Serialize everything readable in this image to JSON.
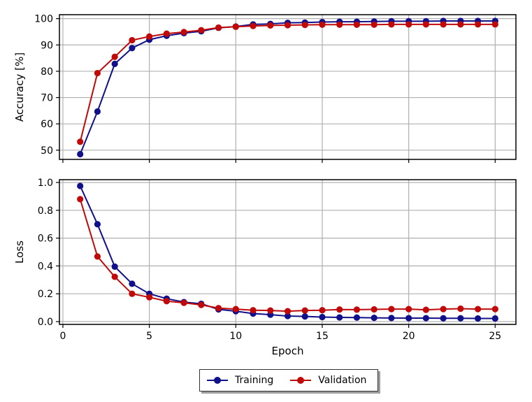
{
  "colors": {
    "training": "#10108a",
    "validation": "#c00a0a",
    "grid": "#b0b0b0"
  },
  "chart_data": [
    {
      "type": "line",
      "title": "",
      "xlabel": "",
      "ylabel": "Accuracy [%]",
      "xlim": [
        -0.2,
        26.2
      ],
      "ylim": [
        46.5,
        101.5
      ],
      "xticks": [
        0,
        5,
        10,
        15,
        20,
        25
      ],
      "yticks": [
        50,
        60,
        70,
        80,
        90,
        100
      ],
      "ytick_labels": [
        "50",
        "60",
        "70",
        "80",
        "90",
        "100"
      ],
      "grid": true,
      "x": [
        1,
        2,
        3,
        4,
        5,
        6,
        7,
        8,
        9,
        10,
        11,
        12,
        13,
        14,
        15,
        16,
        17,
        18,
        19,
        20,
        21,
        22,
        23,
        24,
        25
      ],
      "series": [
        {
          "name": "Training",
          "color": "#10108a",
          "values": [
            48.5,
            64.7,
            82.8,
            88.8,
            92.0,
            93.5,
            94.5,
            95.2,
            96.5,
            97.0,
            97.8,
            98.0,
            98.4,
            98.5,
            98.7,
            98.8,
            98.8,
            98.9,
            99.0,
            99.0,
            99.0,
            99.1,
            99.1,
            99.1,
            99.1
          ]
        },
        {
          "name": "Validation",
          "color": "#c00a0a",
          "values": [
            53.2,
            79.3,
            85.5,
            91.8,
            93.2,
            94.3,
            94.9,
            95.6,
            96.6,
            96.9,
            97.2,
            97.4,
            97.5,
            97.6,
            97.7,
            97.7,
            97.7,
            97.7,
            97.8,
            97.8,
            97.8,
            97.8,
            97.8,
            97.8,
            97.8
          ]
        }
      ]
    },
    {
      "type": "line",
      "title": "",
      "xlabel": "Epoch",
      "ylabel": "Loss",
      "xlim": [
        -0.2,
        26.2
      ],
      "ylim": [
        -0.02,
        1.02
      ],
      "xticks": [
        0,
        5,
        10,
        15,
        20,
        25
      ],
      "xtick_labels": [
        "0",
        "5",
        "10",
        "15",
        "20",
        "25"
      ],
      "yticks": [
        0.0,
        0.2,
        0.4,
        0.6,
        0.8,
        1.0
      ],
      "ytick_labels": [
        "0.0",
        "0.2",
        "0.4",
        "0.6",
        "0.8",
        "1.0"
      ],
      "grid": true,
      "x": [
        1,
        2,
        3,
        4,
        5,
        6,
        7,
        8,
        9,
        10,
        11,
        12,
        13,
        14,
        15,
        16,
        17,
        18,
        19,
        20,
        21,
        22,
        23,
        24,
        25
      ],
      "series": [
        {
          "name": "Training",
          "color": "#10108a",
          "values": [
            0.975,
            0.7,
            0.395,
            0.272,
            0.2,
            0.165,
            0.14,
            0.128,
            0.088,
            0.075,
            0.058,
            0.05,
            0.04,
            0.037,
            0.033,
            0.03,
            0.029,
            0.027,
            0.026,
            0.025,
            0.025,
            0.024,
            0.024,
            0.023,
            0.023
          ]
        },
        {
          "name": "Validation",
          "color": "#c00a0a",
          "values": [
            0.88,
            0.468,
            0.322,
            0.2,
            0.175,
            0.147,
            0.135,
            0.12,
            0.097,
            0.09,
            0.082,
            0.08,
            0.075,
            0.08,
            0.082,
            0.087,
            0.086,
            0.088,
            0.09,
            0.09,
            0.085,
            0.09,
            0.093,
            0.09,
            0.09
          ]
        }
      ],
      "legend": {
        "position": "below",
        "entries": [
          "Training",
          "Validation"
        ]
      }
    }
  ]
}
